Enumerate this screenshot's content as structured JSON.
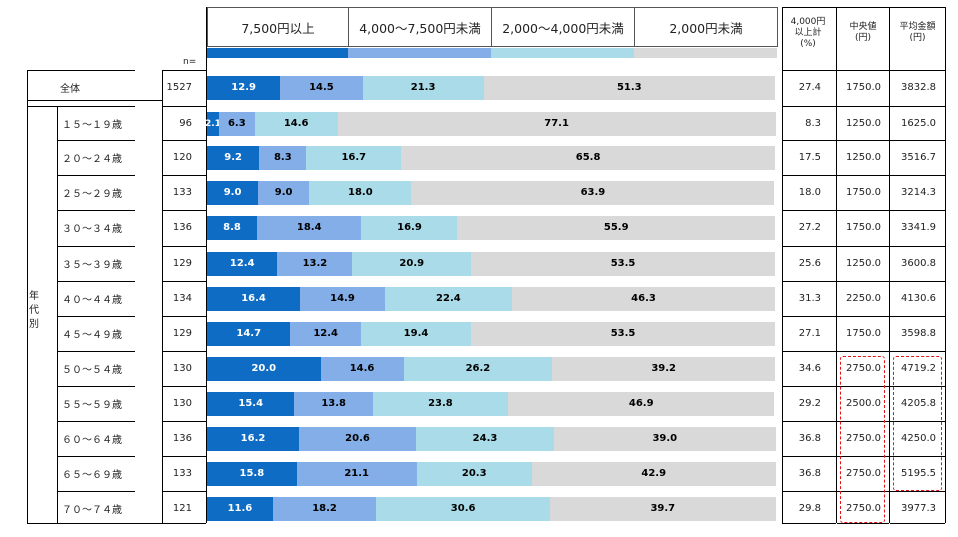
{
  "legend": [
    "7,500円以上",
    "4,000～7,500円未満",
    "2,000～4,000円未満",
    "2,000円未満"
  ],
  "colors": [
    "#0f6cc4",
    "#84aee8",
    "#a9dce8",
    "#d9d9d9"
  ],
  "text_colors": [
    "#ffffff",
    "#000000",
    "#000000",
    "#000000"
  ],
  "headers": {
    "n": "n=",
    "col1": [
      "4,000円",
      "以上計",
      "(%)"
    ],
    "col2": [
      "中央値",
      "(円)"
    ],
    "col3": [
      "平均金額",
      "(円)"
    ]
  },
  "group_label": "年代別",
  "chart_data": {
    "type": "bar",
    "stacked": true,
    "orientation": "horizontal",
    "series_names": [
      "7,500円以上",
      "4,000～7,500円未満",
      "2,000～4,000円未満",
      "2,000円未満"
    ],
    "rows": [
      {
        "label": "全体",
        "n": "1527",
        "values": [
          12.9,
          14.5,
          21.3,
          51.3
        ],
        "display": [
          "12.9",
          "14.5",
          "21.3",
          "51.3"
        ],
        "over4000": "27.4",
        "median": "1750.0",
        "mean": "3832.8"
      },
      {
        "label": "１５～１９歳",
        "n": "96",
        "values": [
          2.1,
          6.3,
          14.6,
          77.1
        ],
        "display": [
          "2.1",
          "6.3",
          "14.6",
          "77.1"
        ],
        "over4000": "8.3",
        "median": "1250.0",
        "mean": "1625.0"
      },
      {
        "label": "２０～２４歳",
        "n": "120",
        "values": [
          9.2,
          8.3,
          16.7,
          65.8
        ],
        "display": [
          "9.2",
          "8.3",
          "16.7",
          "65.8"
        ],
        "over4000": "17.5",
        "median": "1250.0",
        "mean": "3516.7"
      },
      {
        "label": "２５～２９歳",
        "n": "133",
        "values": [
          9.0,
          9.0,
          18.0,
          63.9
        ],
        "display": [
          "9.0",
          "9.0",
          "18.0",
          "63.9"
        ],
        "over4000": "18.0",
        "median": "1750.0",
        "mean": "3214.3"
      },
      {
        "label": "３０～３４歳",
        "n": "136",
        "values": [
          8.8,
          18.4,
          16.9,
          55.9
        ],
        "display": [
          "8.8",
          "18.4",
          "16.9",
          "55.9"
        ],
        "over4000": "27.2",
        "median": "1750.0",
        "mean": "3341.9"
      },
      {
        "label": "３５～３９歳",
        "n": "129",
        "values": [
          12.4,
          13.2,
          20.9,
          53.5
        ],
        "display": [
          "12.4",
          "13.2",
          "20.9",
          "53.5"
        ],
        "over4000": "25.6",
        "median": "1250.0",
        "mean": "3600.8"
      },
      {
        "label": "４０～４４歳",
        "n": "134",
        "values": [
          16.4,
          14.9,
          22.4,
          46.3
        ],
        "display": [
          "16.4",
          "14.9",
          "22.4",
          "46.3"
        ],
        "over4000": "31.3",
        "median": "2250.0",
        "mean": "4130.6"
      },
      {
        "label": "４５～４９歳",
        "n": "129",
        "values": [
          14.7,
          12.4,
          19.4,
          53.5
        ],
        "display": [
          "14.7",
          "12.4",
          "19.4",
          "53.5"
        ],
        "over4000": "27.1",
        "median": "1750.0",
        "mean": "3598.8"
      },
      {
        "label": "５０～５４歳",
        "n": "130",
        "values": [
          20.0,
          14.6,
          26.2,
          39.2
        ],
        "display": [
          "20.0",
          "14.6",
          "26.2",
          "39.2"
        ],
        "over4000": "34.6",
        "median": "2750.0",
        "mean": "4719.2"
      },
      {
        "label": "５５～５９歳",
        "n": "130",
        "values": [
          15.4,
          13.8,
          23.8,
          46.9
        ],
        "display": [
          "15.4",
          "13.8",
          "23.8",
          "46.9"
        ],
        "over4000": "29.2",
        "median": "2500.0",
        "mean": "4205.8"
      },
      {
        "label": "６０～６４歳",
        "n": "136",
        "values": [
          16.2,
          20.6,
          24.3,
          39.0
        ],
        "display": [
          "16.2",
          "20.6",
          "24.3",
          "39.0"
        ],
        "over4000": "36.8",
        "median": "2750.0",
        "mean": "4250.0"
      },
      {
        "label": "６５～６９歳",
        "n": "133",
        "values": [
          15.8,
          21.1,
          20.3,
          42.9
        ],
        "display": [
          "15.8",
          "21.1",
          "20.3",
          "42.9"
        ],
        "over4000": "36.8",
        "median": "2750.0",
        "mean": "5195.5"
      },
      {
        "label": "７０～７４歳",
        "n": "121",
        "values": [
          11.6,
          18.2,
          30.6,
          39.7
        ],
        "display": [
          "11.6",
          "18.2",
          "30.6",
          "39.7"
        ],
        "over4000": "29.8",
        "median": "2750.0",
        "mean": "3977.3"
      }
    ],
    "xlim": [
      0,
      100
    ],
    "highlighted": {
      "median_rows": [
        "５０～５４歳",
        "５５～５９歳",
        "６０～６４歳",
        "６５～６９歳",
        "７０～７４歳"
      ],
      "mean_rows": [
        "５０～５４歳",
        "５５～５９歳",
        "６０～６４歳",
        "６５～６９歳"
      ]
    }
  }
}
